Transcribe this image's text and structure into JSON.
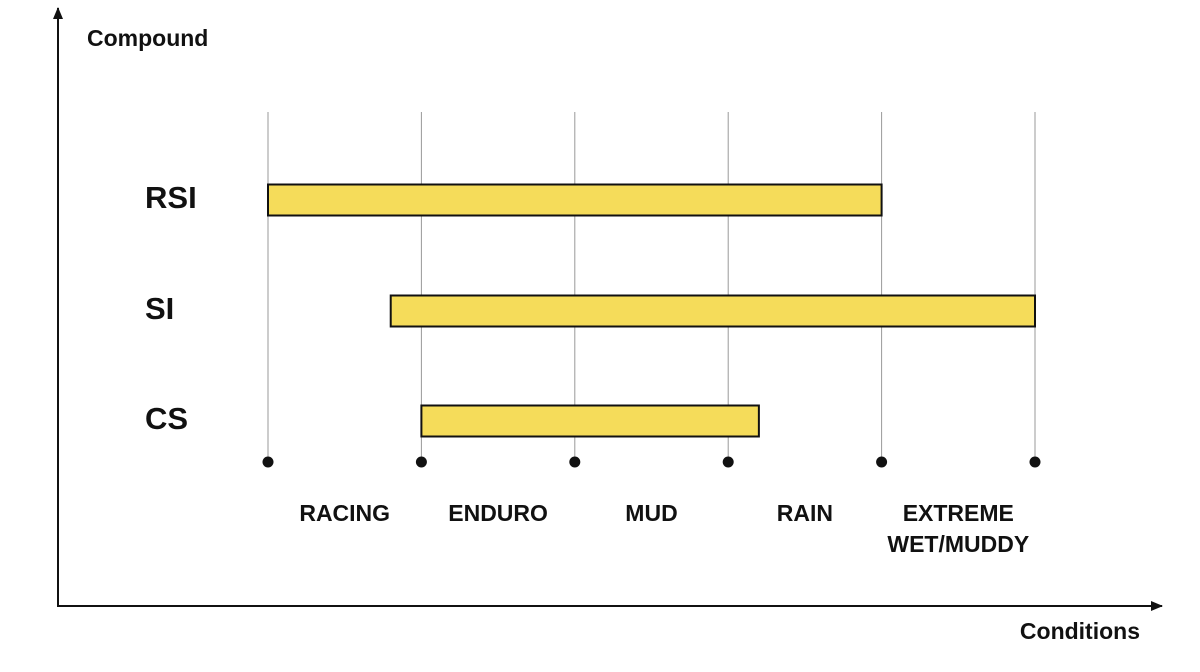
{
  "chart_data": {
    "type": "range",
    "y_label": "Compound",
    "x_label": "Conditions",
    "categories": [
      "RSI",
      "SI",
      "CS"
    ],
    "starts": [
      0,
      0.8,
      1
    ],
    "ends": [
      4,
      5,
      3.2
    ],
    "color": "#f5dc5a",
    "x_categories": [
      "RACING",
      "ENDURO",
      "MUD",
      "RAIN",
      "EXTREME WET/MUDDY"
    ],
    "xlim": [
      0,
      5
    ]
  }
}
